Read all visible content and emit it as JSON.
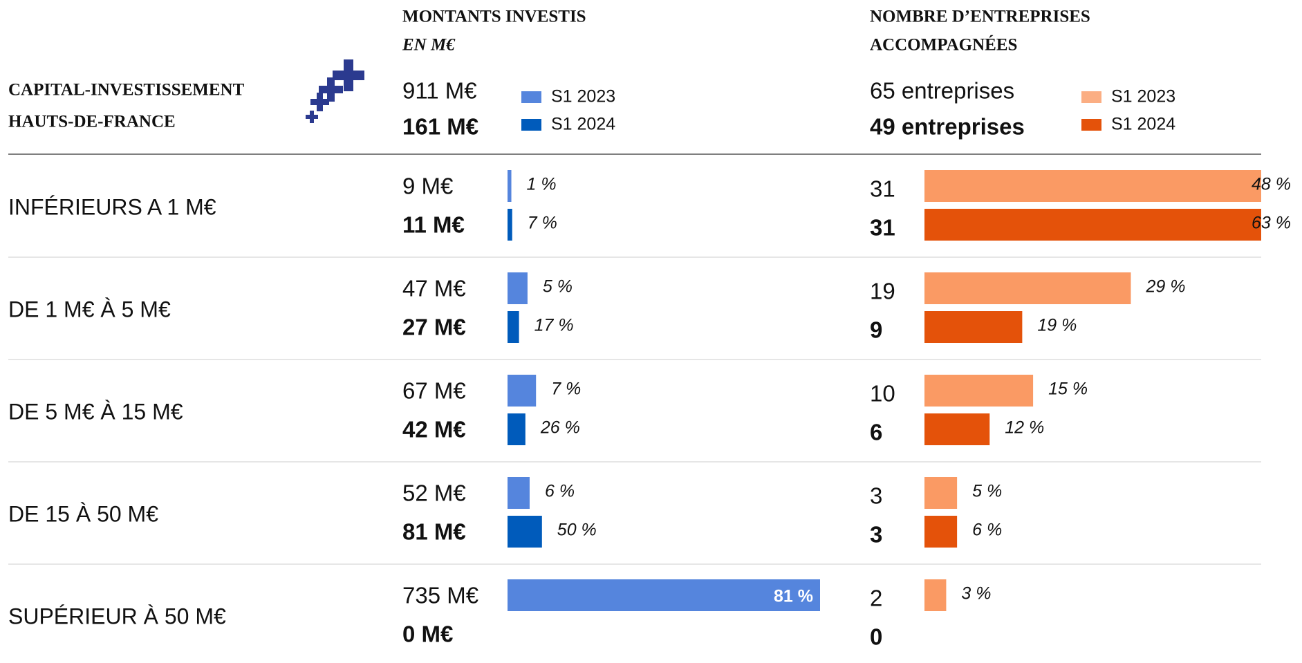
{
  "brand": {
    "lines": [
      "CAPITAL-INVESTISSEMENT",
      "HAUTS-DE-FRANCE"
    ]
  },
  "columns": [
    {
      "title": [
        "MONTANTS INVESTIS"
      ],
      "subtitle": "EN M€",
      "totals": {
        "values": [
          911,
          161
        ],
        "value_labels": [
          "911 M€",
          "161 M€"
        ]
      },
      "legend": [
        "S1 2023",
        "S1 2024"
      ],
      "colors": [
        "#5585dd",
        "#005bbb"
      ]
    },
    {
      "title": [
        "NOMBRE D’ENTREPRISES",
        "ACCOMPAGNÉES"
      ],
      "totals": {
        "values": [
          65,
          49
        ],
        "value_labels": [
          "65 entreprises",
          "49 entreprises"
        ]
      },
      "legend": [
        "S1 2023",
        "S1 2024"
      ],
      "colors": [
        "#fa9a64",
        "#e4520a"
      ]
    }
  ],
  "rows": [
    {
      "label": "INFÉRIEURS A 1 M€",
      "amounts": {
        "values": [
          9,
          11
        ],
        "value_labels": [
          "9 M€",
          "11 M€"
        ]
      },
      "amount_shares": [
        "1 %",
        "7 %"
      ],
      "counts": [
        31,
        31
      ],
      "count_shares": [
        "48 %",
        "63 %"
      ]
    },
    {
      "label": "DE 1 M€ À 5 M€",
      "amounts": {
        "values": [
          47,
          27
        ],
        "value_labels": [
          "47 M€",
          "27 M€"
        ]
      },
      "amount_shares": [
        "5 %",
        "17 %"
      ],
      "counts": [
        19,
        9
      ],
      "count_shares": [
        "29 %",
        "19 %"
      ]
    },
    {
      "label": "DE 5 M€ À 15 M€",
      "amounts": {
        "values": [
          67,
          42
        ],
        "value_labels": [
          "67 M€",
          "42 M€"
        ]
      },
      "amount_shares": [
        "7 %",
        "26 %"
      ],
      "counts": [
        10,
        6
      ],
      "count_shares": [
        "15 %",
        "12 %"
      ]
    },
    {
      "label": "DE 15 À 50 M€",
      "amounts": {
        "values": [
          52,
          81
        ],
        "value_labels": [
          "52 M€",
          "81 M€"
        ]
      },
      "amount_shares": [
        "6 %",
        "50 %"
      ],
      "counts": [
        3,
        3
      ],
      "count_shares": [
        "5 %",
        "6 %"
      ]
    },
    {
      "label": "SUPÉRIEUR À 50 M€",
      "amounts": {
        "values": [
          735,
          0
        ],
        "value_labels": [
          "735 M€",
          "0 M€"
        ]
      },
      "amount_shares": [
        "81 %",
        null
      ],
      "counts": [
        2,
        0
      ],
      "count_shares": [
        "3 %",
        null
      ]
    }
  ]
}
